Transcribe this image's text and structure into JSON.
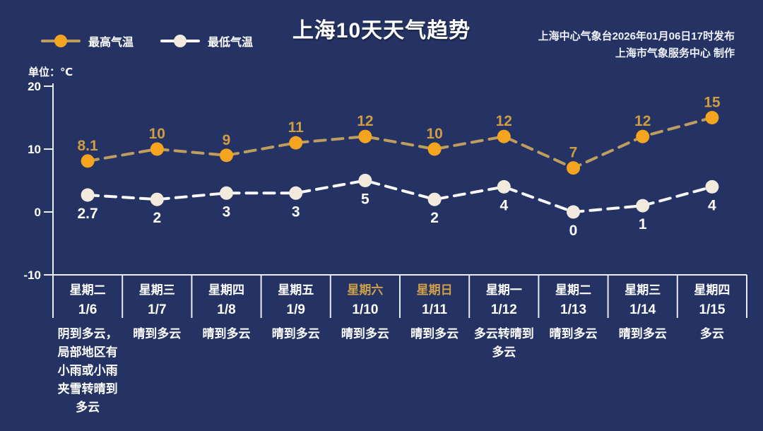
{
  "title": "上海10天天气趋势",
  "publisher": {
    "line1": "上海中心气象台2026年01月06日17时发布",
    "line2": "上海市气象服务中心  制作"
  },
  "unit_label": "单位：℃",
  "legend": {
    "max": {
      "label": "最高气温",
      "dot_color": "#f4a41f",
      "line_color": "#bf9d5e"
    },
    "min": {
      "label": "最低气温",
      "dot_color": "#f2ebdd",
      "line_color": "#f8f8f8"
    }
  },
  "colors": {
    "background": "#243363",
    "axis": "#e9ecf4",
    "weekend_label": "#cfa04a",
    "max_value_label": "#cf9c44",
    "min_value_label": "#ffffff"
  },
  "chart_data": {
    "type": "line",
    "title": "上海10天天气趋势",
    "ylabel": "单位：℃",
    "ylim": [
      -10,
      20
    ],
    "yticks": [
      20,
      10,
      0,
      -10
    ],
    "grid": false,
    "legend_position": "top-left",
    "categories": [
      "1/6",
      "1/7",
      "1/8",
      "1/9",
      "1/10",
      "1/11",
      "1/12",
      "1/13",
      "1/14",
      "1/15"
    ],
    "series": [
      {
        "name": "最高气温",
        "values": [
          8.1,
          10,
          9,
          11,
          12,
          10,
          12,
          7,
          12,
          15
        ],
        "marker_color": "#f4a41f",
        "line_color": "#bf9d5e",
        "label_color": "#cf9c44"
      },
      {
        "name": "最低气温",
        "values": [
          2.7,
          2,
          3,
          3,
          5,
          2,
          4,
          0,
          1,
          4
        ],
        "marker_color": "#f2ebdd",
        "line_color": "#f8f8f8",
        "label_color": "#ffffff"
      }
    ]
  },
  "days": [
    {
      "week": "星期二",
      "date": "1/6",
      "weekend": false,
      "weather": "阴到多云，局部地区有小雨或小雨夹雪转晴到多云"
    },
    {
      "week": "星期三",
      "date": "1/7",
      "weekend": false,
      "weather": "晴到多云"
    },
    {
      "week": "星期四",
      "date": "1/8",
      "weekend": false,
      "weather": "晴到多云"
    },
    {
      "week": "星期五",
      "date": "1/9",
      "weekend": false,
      "weather": "晴到多云"
    },
    {
      "week": "星期六",
      "date": "1/10",
      "weekend": true,
      "weather": "晴到多云"
    },
    {
      "week": "星期日",
      "date": "1/11",
      "weekend": true,
      "weather": "晴到多云"
    },
    {
      "week": "星期一",
      "date": "1/12",
      "weekend": false,
      "weather": "多云转晴到多云"
    },
    {
      "week": "星期二",
      "date": "1/13",
      "weekend": false,
      "weather": "晴到多云"
    },
    {
      "week": "星期三",
      "date": "1/14",
      "weekend": false,
      "weather": "晴到多云"
    },
    {
      "week": "星期四",
      "date": "1/15",
      "weekend": false,
      "weather": "多云"
    }
  ]
}
